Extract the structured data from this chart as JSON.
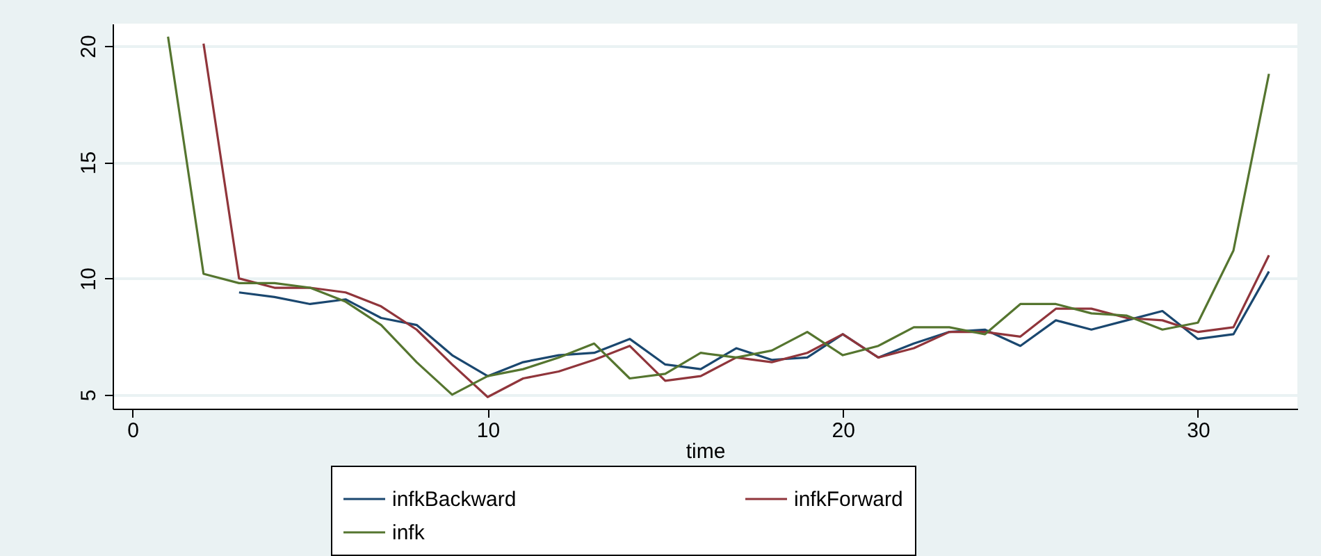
{
  "chart_data": {
    "type": "line",
    "xlabel": "time",
    "x": [
      1,
      2,
      3,
      4,
      5,
      6,
      7,
      8,
      9,
      10,
      11,
      12,
      13,
      14,
      15,
      16,
      17,
      18,
      19,
      20,
      21,
      22,
      23,
      24,
      25,
      26,
      27,
      28,
      29,
      30,
      31,
      32
    ],
    "series": [
      {
        "name": "infkBackward",
        "color": "#1a476f",
        "values": [
          null,
          null,
          9.4,
          9.2,
          8.9,
          9.1,
          8.3,
          8.0,
          6.7,
          5.8,
          6.4,
          6.7,
          6.8,
          7.4,
          6.3,
          6.1,
          7.0,
          6.5,
          6.6,
          7.6,
          6.6,
          7.2,
          7.7,
          7.8,
          7.1,
          8.2,
          7.8,
          8.2,
          8.6,
          7.4,
          7.6,
          10.3
        ]
      },
      {
        "name": "infkForward",
        "color": "#90353b",
        "values": [
          null,
          20.1,
          10.0,
          9.6,
          9.6,
          9.4,
          8.8,
          7.8,
          6.3,
          4.9,
          5.7,
          6.0,
          6.5,
          7.1,
          5.6,
          5.8,
          6.6,
          6.4,
          6.8,
          7.6,
          6.6,
          7.0,
          7.7,
          7.7,
          7.5,
          8.7,
          8.7,
          8.3,
          8.2,
          7.7,
          7.9,
          11.0
        ]
      },
      {
        "name": "infk",
        "color": "#55752f",
        "values": [
          20.4,
          10.2,
          9.8,
          9.8,
          9.6,
          9.0,
          8.0,
          6.4,
          5.0,
          5.8,
          6.1,
          6.6,
          7.2,
          5.7,
          5.9,
          6.8,
          6.6,
          6.9,
          7.7,
          6.7,
          7.1,
          7.9,
          7.9,
          7.6,
          8.9,
          8.9,
          8.5,
          8.4,
          7.8,
          8.1,
          11.2,
          18.8
        ]
      }
    ],
    "xlim": [
      -0.56,
      32.8
    ],
    "ylim": [
      4.4,
      20.96
    ],
    "xticks": [
      0,
      10,
      20,
      30
    ],
    "yticks": [
      5,
      10,
      15,
      20
    ],
    "grid": "y",
    "legend": "bottom",
    "line_style": "solid",
    "marker": "none"
  }
}
